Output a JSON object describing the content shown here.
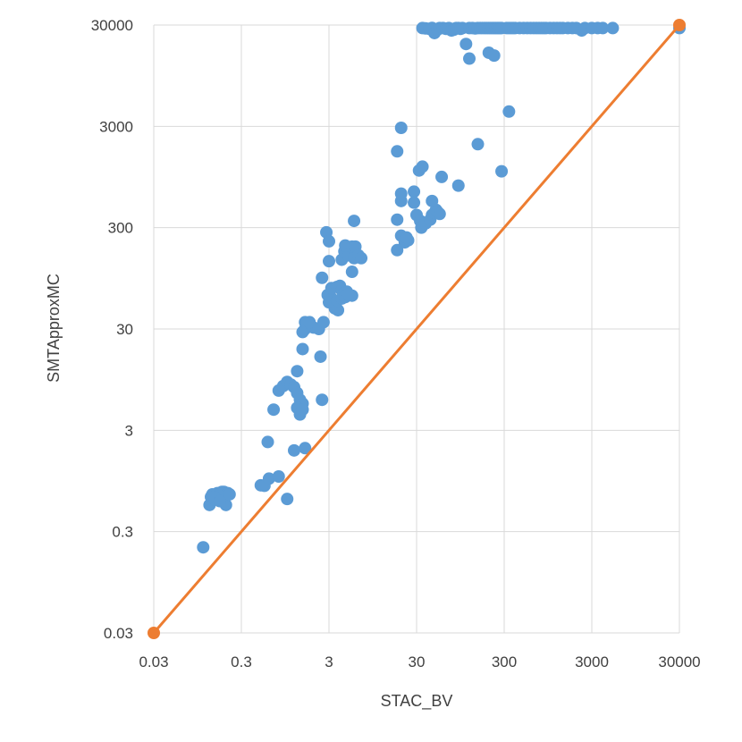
{
  "chart_data": {
    "type": "scatter",
    "title": "",
    "xlabel": "STAC_BV",
    "ylabel": "SMTApproxMC",
    "x_scale": "log",
    "y_scale": "log",
    "xlim": [
      0.03,
      30000
    ],
    "ylim": [
      0.03,
      30000
    ],
    "x_ticks": [
      "0.03",
      "0.3",
      "3",
      "30",
      "300",
      "3000",
      "30000"
    ],
    "y_ticks": [
      "0.03",
      "0.3",
      "3",
      "30",
      "300",
      "3000",
      "30000"
    ],
    "grid": true,
    "legend": "none",
    "colors": {
      "points": "#5b9bd5",
      "diagonal": "#ed7d31",
      "grid": "#d9d9d9",
      "text": "#404040"
    },
    "diagonal": {
      "x": [
        0.03,
        30000
      ],
      "y": [
        0.03,
        30000
      ]
    },
    "points": [
      [
        0.11,
        0.21
      ],
      [
        0.13,
        0.55
      ],
      [
        0.135,
        0.66
      ],
      [
        0.14,
        0.7
      ],
      [
        0.15,
        0.62
      ],
      [
        0.16,
        0.72
      ],
      [
        0.17,
        0.7
      ],
      [
        0.18,
        0.74
      ],
      [
        0.19,
        0.74
      ],
      [
        0.2,
        0.55
      ],
      [
        0.21,
        0.72
      ],
      [
        0.22,
        0.7
      ],
      [
        0.15,
        0.65
      ],
      [
        0.17,
        0.6
      ],
      [
        0.5,
        0.86
      ],
      [
        0.55,
        0.85
      ],
      [
        0.62,
        1.0
      ],
      [
        0.8,
        1.05
      ],
      [
        0.6,
        2.3
      ],
      [
        0.7,
        4.8
      ],
      [
        0.8,
        7.4
      ],
      [
        0.9,
        8.2
      ],
      [
        1.0,
        9.0
      ],
      [
        1.1,
        8.5
      ],
      [
        1.2,
        8.0
      ],
      [
        1.3,
        7.0
      ],
      [
        1.4,
        6.0
      ],
      [
        1.5,
        5.5
      ],
      [
        1.3,
        5.0
      ],
      [
        1.4,
        4.3
      ],
      [
        1.5,
        4.8
      ],
      [
        1.2,
        1.9
      ],
      [
        1.6,
        2.0
      ],
      [
        1.0,
        0.63
      ],
      [
        1.3,
        11.5
      ],
      [
        1.5,
        19.0
      ],
      [
        1.5,
        28.0
      ],
      [
        1.6,
        30.0
      ],
      [
        2.0,
        31.0
      ],
      [
        1.6,
        35.0
      ],
      [
        1.8,
        35.0
      ],
      [
        2.3,
        30.0
      ],
      [
        2.4,
        16.0
      ],
      [
        2.5,
        6.0
      ],
      [
        2.5,
        96.0
      ],
      [
        2.6,
        35.0
      ],
      [
        2.8,
        270.0
      ],
      [
        3.0,
        220.0
      ],
      [
        3.0,
        140.0
      ],
      [
        2.9,
        65.0
      ],
      [
        3.1,
        63.0
      ],
      [
        3.2,
        58.0
      ],
      [
        3.3,
        54.0
      ],
      [
        3.4,
        52.0
      ],
      [
        3.6,
        50.0
      ],
      [
        3.5,
        48.0
      ],
      [
        3.8,
        46.0
      ],
      [
        3.2,
        76.0
      ],
      [
        3.7,
        78.0
      ],
      [
        4.0,
        80.0
      ],
      [
        4.2,
        72.0
      ],
      [
        4.5,
        68.0
      ],
      [
        4.8,
        70.0
      ],
      [
        5.5,
        64.0
      ],
      [
        3.0,
        55.0
      ],
      [
        3.7,
        57.0
      ],
      [
        4.2,
        60.0
      ],
      [
        4.6,
        62.0
      ],
      [
        5.0,
        66.0
      ],
      [
        4.2,
        145.0
      ],
      [
        4.5,
        175.0
      ],
      [
        5.0,
        160.0
      ],
      [
        4.6,
        200.0
      ],
      [
        5.5,
        195.0
      ],
      [
        6.0,
        195.0
      ],
      [
        5.5,
        110.0
      ],
      [
        5.8,
        150.0
      ],
      [
        6.5,
        160.0
      ],
      [
        7.0,
        150.0
      ],
      [
        5.8,
        350.0
      ],
      [
        18.0,
        1700.0
      ],
      [
        20.0,
        2900.0
      ],
      [
        18.0,
        360.0
      ],
      [
        20.0,
        250.0
      ],
      [
        22.0,
        215.0
      ],
      [
        20.0,
        550.0
      ],
      [
        20.0,
        650.0
      ],
      [
        18.0,
        180.0
      ],
      [
        24.0,
        225.0
      ],
      [
        23.0,
        240.0
      ],
      [
        30.0,
        400.0
      ],
      [
        33.0,
        350.0
      ],
      [
        32.0,
        1100.0
      ],
      [
        35.0,
        1200.0
      ],
      [
        28.0,
        680.0
      ],
      [
        28.0,
        530.0
      ],
      [
        34.0,
        300.0
      ],
      [
        38.0,
        330.0
      ],
      [
        43.0,
        360.0
      ],
      [
        45.0,
        400.0
      ],
      [
        48.0,
        420.0
      ],
      [
        50.0,
        450.0
      ],
      [
        52.0,
        430.0
      ],
      [
        55.0,
        410.0
      ],
      [
        45.0,
        550.0
      ],
      [
        58.0,
        950.0
      ],
      [
        90.0,
        780.0
      ],
      [
        35.0,
        28000.0
      ],
      [
        38.0,
        27800.0
      ],
      [
        42.0,
        27500.0
      ],
      [
        45.0,
        28100.0
      ],
      [
        48.0,
        25000.0
      ],
      [
        52.0,
        27000.0
      ],
      [
        55.0,
        28000.0
      ],
      [
        60.0,
        28000.0
      ],
      [
        65.0,
        27500.0
      ],
      [
        70.0,
        28000.0
      ],
      [
        75.0,
        26500.0
      ],
      [
        80.0,
        27000.0
      ],
      [
        85.0,
        28000.0
      ],
      [
        90.0,
        28000.0
      ],
      [
        95.0,
        27500.0
      ],
      [
        100.0,
        28000.0
      ],
      [
        120.0,
        28000.0
      ],
      [
        130.0,
        28000.0
      ],
      [
        140.0,
        27800.0
      ],
      [
        150.0,
        28000.0
      ],
      [
        160.0,
        28000.0
      ],
      [
        170.0,
        28000.0
      ],
      [
        180.0,
        28000.0
      ],
      [
        190.0,
        28000.0
      ],
      [
        200.0,
        28000.0
      ],
      [
        210.0,
        28000.0
      ],
      [
        220.0,
        28000.0
      ],
      [
        230.0,
        28000.0
      ],
      [
        240.0,
        28000.0
      ],
      [
        250.0,
        28000.0
      ],
      [
        260.0,
        28000.0
      ],
      [
        270.0,
        28000.0
      ],
      [
        280.0,
        28000.0
      ],
      [
        320.0,
        28000.0
      ],
      [
        340.0,
        28000.0
      ],
      [
        360.0,
        28000.0
      ],
      [
        380.0,
        28000.0
      ],
      [
        400.0,
        28000.0
      ],
      [
        450.0,
        28000.0
      ],
      [
        500.0,
        28000.0
      ],
      [
        550.0,
        28000.0
      ],
      [
        600.0,
        28000.0
      ],
      [
        650.0,
        28000.0
      ],
      [
        700.0,
        28000.0
      ],
      [
        750.0,
        28000.0
      ],
      [
        800.0,
        28000.0
      ],
      [
        850.0,
        28000.0
      ],
      [
        900.0,
        28000.0
      ],
      [
        1000.0,
        28000.0
      ],
      [
        1100.0,
        28000.0
      ],
      [
        1200.0,
        28000.0
      ],
      [
        1300.0,
        28000.0
      ],
      [
        1400.0,
        28000.0
      ],
      [
        1600.0,
        28000.0
      ],
      [
        1800.0,
        28000.0
      ],
      [
        2000.0,
        28000.0
      ],
      [
        2300.0,
        26500.0
      ],
      [
        2500.0,
        28000.0
      ],
      [
        3000.0,
        28000.0
      ],
      [
        3500.0,
        28000.0
      ],
      [
        4000.0,
        28000.0
      ],
      [
        5200.0,
        28000.0
      ],
      [
        30000.0,
        28000.0
      ],
      [
        110.0,
        19500.0
      ],
      [
        120.0,
        14000.0
      ],
      [
        200.0,
        16000.0
      ],
      [
        230.0,
        15000.0
      ],
      [
        340.0,
        4200.0
      ],
      [
        280.0,
        1080.0
      ],
      [
        150.0,
        2000.0
      ]
    ]
  }
}
